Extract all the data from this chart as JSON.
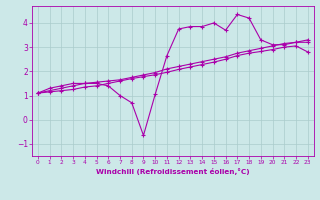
{
  "xlabel": "Windchill (Refroidissement éolien,°C)",
  "background_color": "#cce8e8",
  "grid_color": "#aacccc",
  "line_color": "#aa00aa",
  "xlim": [
    -0.5,
    23.5
  ],
  "ylim": [
    -1.5,
    4.7
  ],
  "yticks": [
    -1,
    0,
    1,
    2,
    3,
    4
  ],
  "xticks": [
    0,
    1,
    2,
    3,
    4,
    5,
    6,
    7,
    8,
    9,
    10,
    11,
    12,
    13,
    14,
    15,
    16,
    17,
    18,
    19,
    20,
    21,
    22,
    23
  ],
  "line1_x": [
    0,
    1,
    2,
    3,
    4,
    5,
    6,
    7,
    8,
    9,
    10,
    11,
    12,
    13,
    14,
    15,
    16,
    17,
    18,
    19,
    20,
    21,
    22,
    23
  ],
  "line1_y": [
    1.1,
    1.3,
    1.4,
    1.5,
    1.5,
    1.5,
    1.4,
    1.0,
    0.7,
    -0.65,
    1.05,
    2.65,
    3.75,
    3.85,
    3.85,
    4.0,
    3.7,
    4.35,
    4.2,
    3.3,
    3.1,
    3.1,
    3.2,
    3.2
  ],
  "line2_x": [
    0,
    1,
    2,
    3,
    4,
    5,
    6,
    7,
    8,
    9,
    10,
    11,
    12,
    13,
    14,
    15,
    16,
    17,
    18,
    19,
    20,
    21,
    22,
    23
  ],
  "line2_y": [
    1.1,
    1.2,
    1.3,
    1.4,
    1.5,
    1.55,
    1.6,
    1.65,
    1.75,
    1.85,
    1.95,
    2.1,
    2.2,
    2.3,
    2.4,
    2.5,
    2.6,
    2.75,
    2.85,
    2.95,
    3.05,
    3.15,
    3.2,
    3.3
  ],
  "line3_x": [
    0,
    1,
    2,
    3,
    4,
    5,
    6,
    7,
    8,
    9,
    10,
    11,
    12,
    13,
    14,
    15,
    16,
    17,
    18,
    19,
    20,
    21,
    22,
    23
  ],
  "line3_y": [
    1.1,
    1.15,
    1.2,
    1.25,
    1.35,
    1.4,
    1.5,
    1.6,
    1.7,
    1.78,
    1.86,
    1.96,
    2.08,
    2.18,
    2.28,
    2.38,
    2.5,
    2.65,
    2.75,
    2.82,
    2.9,
    3.0,
    3.05,
    2.8
  ]
}
